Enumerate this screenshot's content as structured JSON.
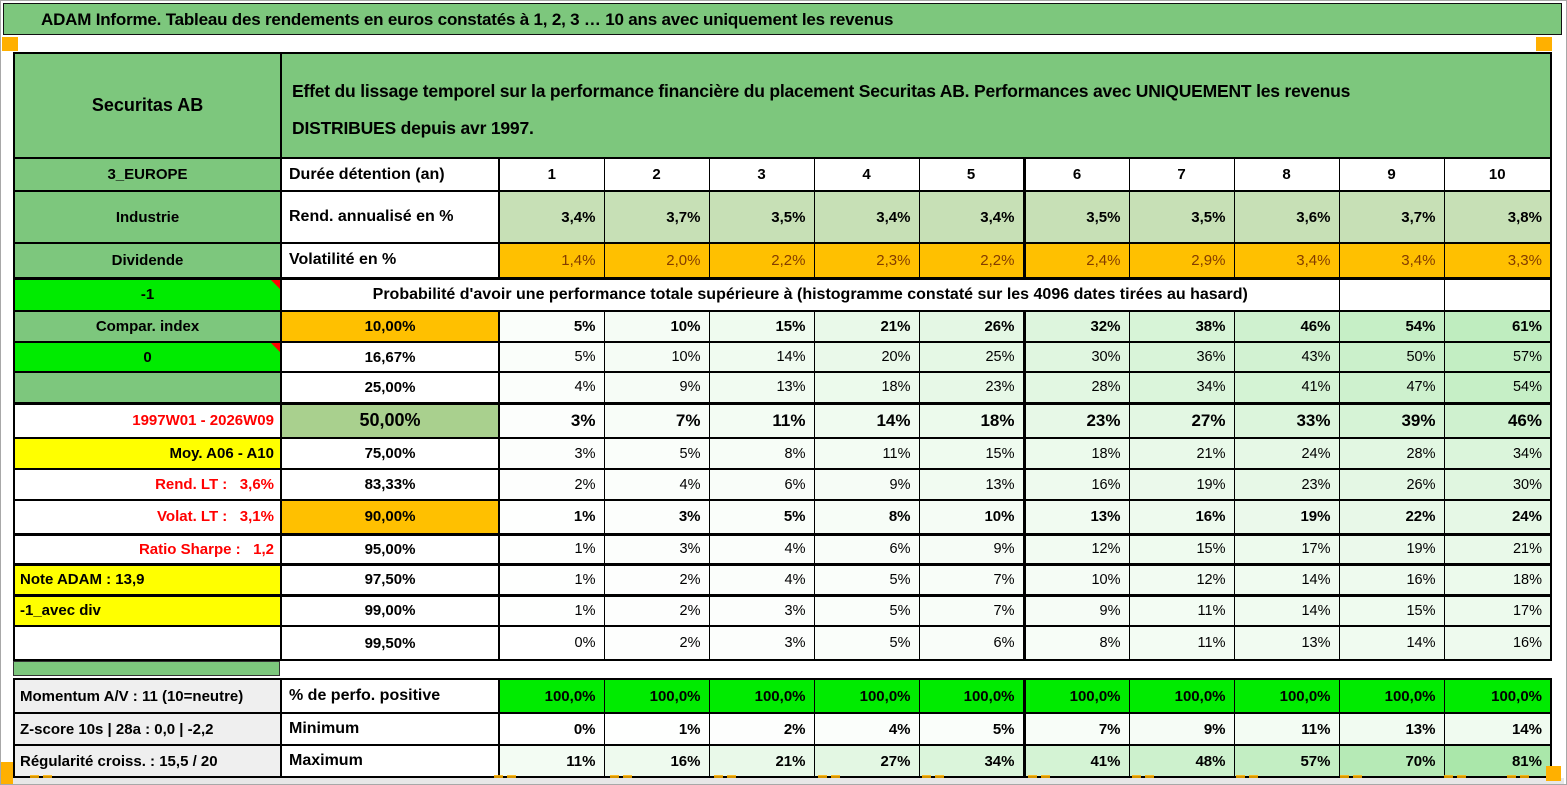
{
  "banner": {
    "title": "ADAM Informe. Tableau des rendements en euros constatés à 1, 2, 3 … 10 ans avec uniquement les revenus"
  },
  "colors": {
    "green": "#7dc77d",
    "light_green": "#c7e0b6",
    "bright_green": "#00eb00",
    "orange": "#ffc000",
    "yellow": "#ffff00",
    "green_50": "#a9d08e",
    "gray": "#efefef",
    "red_text": "#ff0000",
    "volatility_text": "#833c00",
    "marker_orange": "#ffb000"
  },
  "header": {
    "name": "Securitas AB",
    "description_line1": "Effet du lissage temporel sur la performance financière du placement Securitas AB. Performances avec UNIQUEMENT les revenus",
    "description_line2": "DISTRIBUES depuis avr 1997."
  },
  "main_table": {
    "rows": [
      {
        "id": "duration",
        "left": "3_EUROPE",
        "left_style": "green",
        "label": "Durée détention (an)",
        "label_style": "left",
        "values": [
          "1",
          "2",
          "3",
          "4",
          "5",
          "6",
          "7",
          "8",
          "9",
          "10"
        ],
        "value_style": "header"
      },
      {
        "id": "annualized_return",
        "left": "Industrie",
        "left_style": "green",
        "label": "Rend. annualisé en %",
        "label_style": "left",
        "values": [
          "3,4%",
          "3,7%",
          "3,5%",
          "3,4%",
          "3,4%",
          "3,5%",
          "3,5%",
          "3,6%",
          "3,7%",
          "3,8%"
        ],
        "value_style": "lightgreen"
      },
      {
        "id": "volatility",
        "left": "Dividende",
        "left_style": "green",
        "label": "Volatilité en %",
        "label_style": "left",
        "values": [
          "1,4%",
          "2,0%",
          "2,2%",
          "2,3%",
          "2,2%",
          "2,4%",
          "2,9%",
          "3,4%",
          "3,4%",
          "3,3%"
        ],
        "value_style": "orange-row"
      },
      {
        "id": "probability_header",
        "left": "-1",
        "left_style": "bright",
        "label_span": "Probabilité d'avoir une performance totale supérieure à (histogramme constaté sur les 4096 dates tirées au hasard)"
      },
      {
        "id": "p10",
        "left": "Compar. index",
        "left_style": "green",
        "label": "10,00%",
        "label_style": "orange",
        "values": [
          "5%",
          "10%",
          "15%",
          "21%",
          "26%",
          "32%",
          "38%",
          "46%",
          "54%",
          "61%"
        ],
        "value_style": "heat-bold"
      },
      {
        "id": "p16_67",
        "left": "0",
        "left_style": "bright",
        "label": "16,67%",
        "label_style": "plain",
        "values": [
          "5%",
          "10%",
          "14%",
          "20%",
          "25%",
          "30%",
          "36%",
          "43%",
          "50%",
          "57%"
        ],
        "value_style": "heat"
      },
      {
        "id": "p25",
        "left": "",
        "left_style": "green",
        "label": "25,00%",
        "label_style": "plain",
        "values": [
          "4%",
          "9%",
          "13%",
          "18%",
          "23%",
          "28%",
          "34%",
          "41%",
          "47%",
          "54%"
        ],
        "value_style": "heat"
      },
      {
        "id": "p50",
        "left": "1997W01 - 2026W09",
        "left_style": "red-right",
        "label": "50,00%",
        "label_style": "green50",
        "values": [
          "3%",
          "7%",
          "11%",
          "14%",
          "18%",
          "23%",
          "27%",
          "33%",
          "39%",
          "46%"
        ],
        "value_style": "heat-big"
      },
      {
        "id": "p75",
        "left": "Moy. A06 - A10",
        "left_style": "yellow-right",
        "label": "75,00%",
        "label_style": "plain",
        "values": [
          "3%",
          "5%",
          "8%",
          "11%",
          "15%",
          "18%",
          "21%",
          "24%",
          "28%",
          "34%"
        ],
        "value_style": "heat"
      },
      {
        "id": "p83_33",
        "left": "Rend. LT :   3,6%",
        "left_style": "red-right",
        "label": "83,33%",
        "label_style": "plain",
        "values": [
          "2%",
          "4%",
          "6%",
          "9%",
          "13%",
          "16%",
          "19%",
          "23%",
          "26%",
          "30%"
        ],
        "value_style": "heat"
      },
      {
        "id": "p90",
        "left": "Volat. LT :   3,1%",
        "left_style": "red-right",
        "label": "90,00%",
        "label_style": "orange",
        "values": [
          "1%",
          "3%",
          "5%",
          "8%",
          "10%",
          "13%",
          "16%",
          "19%",
          "22%",
          "24%"
        ],
        "value_style": "heat-bold"
      },
      {
        "id": "p95",
        "left": "Ratio Sharpe :   1,2",
        "left_style": "red-right",
        "label": "95,00%",
        "label_style": "plain",
        "values": [
          "1%",
          "3%",
          "4%",
          "6%",
          "9%",
          "12%",
          "15%",
          "17%",
          "19%",
          "21%"
        ],
        "value_style": "heat"
      },
      {
        "id": "p97_5",
        "left": "Note ADAM : 13,9",
        "left_style": "yellow-left",
        "label": "97,50%",
        "label_style": "plain",
        "values": [
          "1%",
          "2%",
          "4%",
          "5%",
          "7%",
          "10%",
          "12%",
          "14%",
          "16%",
          "18%"
        ],
        "value_style": "heat"
      },
      {
        "id": "p99",
        "left": "-1_avec div",
        "left_style": "yellow-left",
        "label": "99,00%",
        "label_style": "plain",
        "values": [
          "1%",
          "2%",
          "3%",
          "5%",
          "7%",
          "9%",
          "11%",
          "14%",
          "15%",
          "17%"
        ],
        "value_style": "heat"
      },
      {
        "id": "p99_5",
        "left": "",
        "left_style": "plain",
        "label": "99,50%",
        "label_style": "plain",
        "values": [
          "0%",
          "2%",
          "3%",
          "5%",
          "6%",
          "8%",
          "11%",
          "13%",
          "14%",
          "16%"
        ],
        "value_style": "heat"
      }
    ]
  },
  "bottom_table": {
    "rows": [
      {
        "id": "positive_perf",
        "left": "Momentum A/V : 11 (10=neutre)",
        "left_style": "gray",
        "label": "% de perfo. positive",
        "label_style": "left",
        "values": [
          "100,0%",
          "100,0%",
          "100,0%",
          "100,0%",
          "100,0%",
          "100,0%",
          "100,0%",
          "100,0%",
          "100,0%",
          "100,0%"
        ],
        "value_style": "bright-solid"
      },
      {
        "id": "minimum",
        "left": "Z-score 10s | 28a : 0,0 | -2,2",
        "left_style": "gray",
        "label": "Minimum",
        "label_style": "left",
        "values": [
          "0%",
          "1%",
          "2%",
          "4%",
          "5%",
          "7%",
          "9%",
          "11%",
          "13%",
          "14%"
        ],
        "value_style": "heat-bold"
      },
      {
        "id": "maximum",
        "left": "Régularité croiss. : 15,5 / 20",
        "left_style": "gray",
        "label": "Maximum",
        "label_style": "left",
        "values": [
          "11%",
          "16%",
          "21%",
          "27%",
          "34%",
          "41%",
          "48%",
          "57%",
          "70%",
          "81%"
        ],
        "value_style": "heat-bold"
      }
    ]
  }
}
